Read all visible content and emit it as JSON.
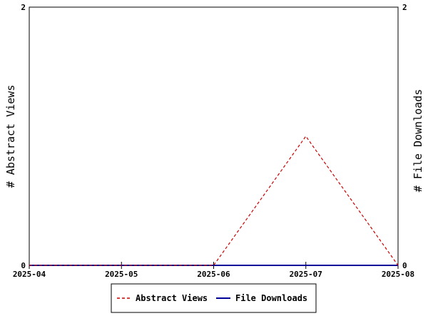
{
  "chart_data": {
    "type": "line",
    "categories": [
      "2025-04",
      "2025-05",
      "2025-06",
      "2025-07",
      "2025-08"
    ],
    "series": [
      {
        "name": "Abstract Views",
        "axis": "left",
        "values": [
          0,
          0,
          0,
          1,
          0
        ],
        "color": "#cc0000",
        "style": "dashed"
      },
      {
        "name": "File Downloads",
        "axis": "right",
        "values": [
          0,
          0,
          0,
          0,
          0
        ],
        "color": "#000099",
        "style": "solid"
      }
    ],
    "ylabel_left": "# Abstract Views",
    "ylabel_right": "# File Downloads",
    "ylim_left": [
      0,
      2
    ],
    "ylim_right": [
      0,
      2
    ],
    "yticks_left": [
      "0",
      "2"
    ],
    "yticks_right": [
      "0",
      "2"
    ],
    "grid": false,
    "legend_position": "bottom-center"
  }
}
